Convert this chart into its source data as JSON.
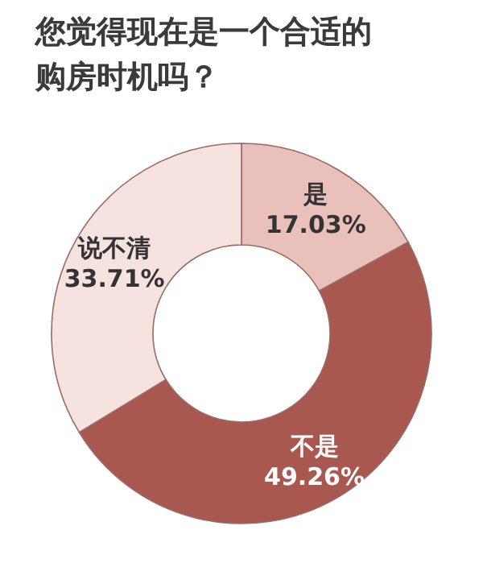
{
  "chart_data": {
    "type": "donut",
    "title": "您觉得现在是一个合适的购房时机吗？",
    "categories": [
      "是",
      "不是",
      "说不清"
    ],
    "values": [
      17.03,
      49.26,
      33.71
    ],
    "colors": [
      "#e9c1ba",
      "#a95850",
      "#f6e3e0"
    ],
    "value_labels": [
      "17.03%",
      "49.26%",
      "33.71%"
    ]
  }
}
